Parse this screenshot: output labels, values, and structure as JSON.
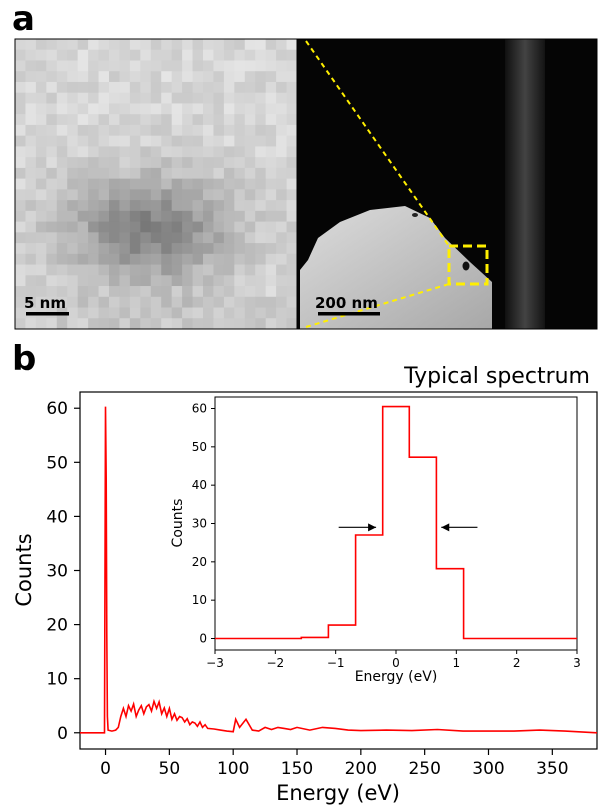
{
  "panel_a": {
    "letter": "a",
    "left_scalebar": "5 nm",
    "right_scalebar": "200 nm"
  },
  "panel_b": {
    "letter": "b"
  },
  "chart_data": [
    {
      "type": "line",
      "title": "Typical spectrum",
      "xlabel": "Energy (eV)",
      "ylabel": "Counts",
      "xlim": [
        -20,
        385
      ],
      "ylim": [
        -3,
        63
      ],
      "xticks": [
        "0",
        "50",
        "100",
        "150",
        "200",
        "250",
        "300",
        "350"
      ],
      "yticks": [
        "0",
        "10",
        "20",
        "30",
        "40",
        "50",
        "60"
      ],
      "color": "#ff0000",
      "grid": false,
      "series": [
        {
          "x": [
            -20,
            -0.8,
            0,
            0.5,
            1.0,
            1.5,
            2,
            5,
            8,
            10,
            12,
            14,
            16,
            18,
            20,
            22,
            24,
            26,
            28,
            30,
            32,
            34,
            36,
            38,
            40,
            42,
            44,
            46,
            48,
            50,
            52,
            54,
            56,
            58,
            60,
            62,
            64,
            66,
            68,
            70,
            72,
            74,
            76,
            78,
            80,
            85,
            90,
            95,
            100,
            102,
            105,
            110,
            115,
            120,
            125,
            130,
            135,
            140,
            145,
            150,
            160,
            170,
            180,
            190,
            200,
            220,
            240,
            260,
            280,
            300,
            320,
            340,
            360,
            385
          ],
          "y": [
            0,
            0,
            60.3,
            47,
            18,
            3,
            0.5,
            0.3,
            0.5,
            1,
            3,
            4.5,
            3,
            5,
            4,
            5.3,
            3,
            4.2,
            5,
            3.5,
            4.8,
            5.2,
            4,
            5.8,
            4.5,
            5.7,
            3.5,
            4.6,
            3,
            4.5,
            2.5,
            3.5,
            2.3,
            3,
            2.8,
            2,
            2.6,
            1.5,
            2,
            1.8,
            1.2,
            2,
            1,
            1.5,
            0.8,
            0.7,
            0.5,
            0.3,
            0.2,
            2.5,
            1,
            2.5,
            0.5,
            0.3,
            1,
            0.6,
            1,
            0.8,
            0.6,
            1,
            0.5,
            1,
            0.8,
            0.5,
            0.4,
            0.5,
            0.4,
            0.6,
            0.3,
            0.3,
            0.3,
            0.5,
            0.3,
            0
          ]
        }
      ]
    },
    {
      "type": "line",
      "title": "",
      "xlabel": "Energy (eV)",
      "ylabel": "Counts",
      "xlim": [
        -3,
        3
      ],
      "ylim": [
        -3,
        63
      ],
      "xticks": [
        "−3",
        "−2",
        "−1",
        "0",
        "1",
        "2",
        "3"
      ],
      "yticks": [
        "0",
        "10",
        "20",
        "30",
        "40",
        "50",
        "60"
      ],
      "color": "#ff0000",
      "step_edges": [
        -3,
        -1.57,
        -1.12,
        -0.67,
        -0.22,
        0.22,
        0.67,
        1.12,
        3
      ],
      "step_values": [
        0,
        0.3,
        3.5,
        27,
        60.5,
        47.3,
        18.2,
        0
      ],
      "arrows": [
        {
          "from": -0.95,
          "to": -0.33,
          "y": 29
        },
        {
          "from": 1.35,
          "to": 0.75,
          "y": 29
        }
      ]
    }
  ]
}
